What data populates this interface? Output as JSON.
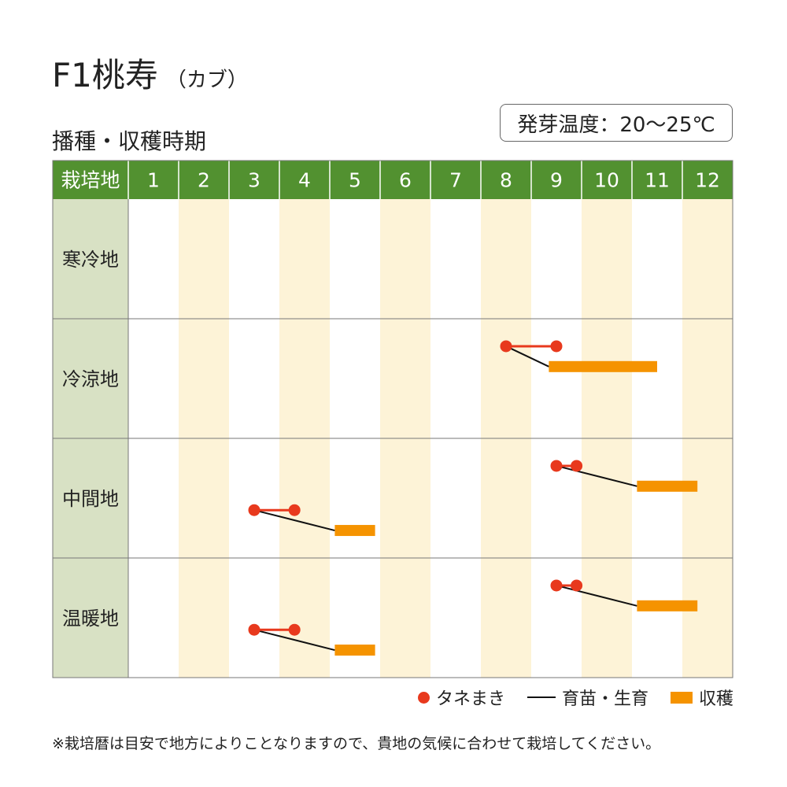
{
  "header": {
    "title": "F1桃寿",
    "subtitle": "（カブ）",
    "section_title": "播種・収穫時期",
    "germination_temp": "発芽温度：20～25℃"
  },
  "colors": {
    "header_green": "#529130",
    "row_label_bg": "#d8e1c4",
    "stripe": "#fdf3d7",
    "sowing": "#e8391d",
    "growing": "#111111",
    "harvest": "#f59300",
    "grid": "#777777"
  },
  "chart_data": {
    "type": "table",
    "corner_label": "栽培地",
    "months": [
      "1",
      "2",
      "3",
      "4",
      "5",
      "6",
      "7",
      "8",
      "9",
      "10",
      "11",
      "12"
    ],
    "striped_months": [
      2,
      4,
      6,
      8,
      10,
      12
    ],
    "regions": [
      {
        "name": "寒冷地",
        "schedules": []
      },
      {
        "name": "冷涼地",
        "schedules": [
          {
            "sow": [
              8.5,
              9.5
            ],
            "harvest": [
              9.35,
              11.5
            ],
            "sow_y": 0.23,
            "harvest_y": 0.4
          }
        ]
      },
      {
        "name": "中間地",
        "schedules": [
          {
            "sow": [
              3.5,
              4.3
            ],
            "harvest": [
              5.1,
              5.9
            ],
            "sow_y": 0.6,
            "harvest_y": 0.77
          },
          {
            "sow": [
              9.5,
              9.9
            ],
            "harvest": [
              11.1,
              12.3
            ],
            "sow_y": 0.23,
            "harvest_y": 0.4
          }
        ]
      },
      {
        "name": "温暖地",
        "schedules": [
          {
            "sow": [
              3.5,
              4.3
            ],
            "harvest": [
              5.1,
              5.9
            ],
            "sow_y": 0.6,
            "harvest_y": 0.77
          },
          {
            "sow": [
              9.5,
              9.9
            ],
            "harvest": [
              11.1,
              12.3
            ],
            "sow_y": 0.23,
            "harvest_y": 0.4
          }
        ]
      }
    ]
  },
  "legend": {
    "sowing": "タネまき",
    "growing": "育苗・生育",
    "harvest": "収穫"
  },
  "note": "※栽培暦は目安で地方によりことなりますので、貴地の気候に合わせて栽培してください。"
}
